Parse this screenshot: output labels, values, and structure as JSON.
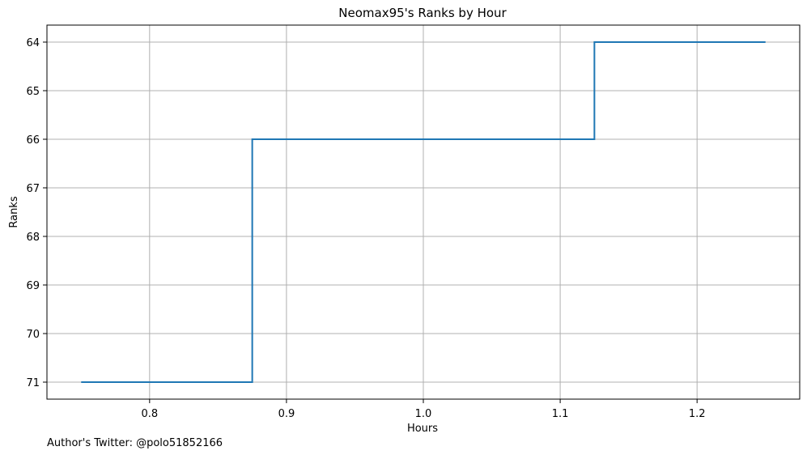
{
  "chart_data": {
    "type": "line",
    "title": "Neomax95's Ranks by Hour",
    "xlabel": "Hours",
    "ylabel": "Ranks",
    "footnote": "Author's Twitter: @polo51852166",
    "x_ticks": [
      0.8,
      0.9,
      1.0,
      1.1,
      1.2
    ],
    "x_tick_labels": [
      "0.8",
      "0.9",
      "1.0",
      "1.1",
      "1.2"
    ],
    "y_ticks": [
      64,
      65,
      66,
      67,
      68,
      69,
      70,
      71
    ],
    "y_tick_labels": [
      "64",
      "65",
      "66",
      "67",
      "68",
      "69",
      "70",
      "71"
    ],
    "xlim": [
      0.725,
      1.275
    ],
    "ylim": [
      71.35,
      63.65
    ],
    "y_inverted": true,
    "grid": true,
    "line_style": "step-mid",
    "series": [
      {
        "x": [
          0.75,
          1.0,
          1.25
        ],
        "y": [
          71,
          66,
          64
        ],
        "color": "#1f77b4"
      }
    ]
  }
}
